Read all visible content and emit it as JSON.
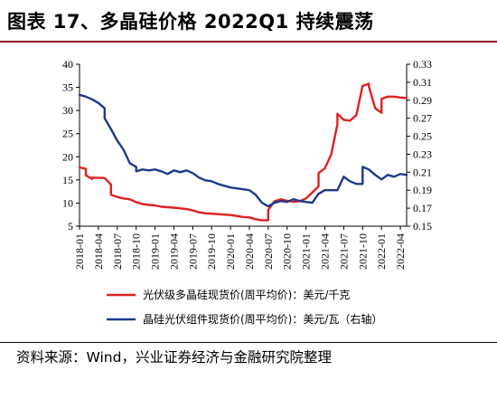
{
  "title": "图表 17、多晶硅价格 2022Q1 持续震荡",
  "source": "资料来源：Wind，兴业证券经济与金融研究院整理",
  "chart_data": {
    "type": "line",
    "x_tick_labels": [
      "2018-01",
      "2018-04",
      "2018-07",
      "2018-10",
      "2019-01",
      "2019-04",
      "2019-07",
      "2019-10",
      "2020-01",
      "2020-04",
      "2020-07",
      "2020-10",
      "2021-01",
      "2021-04",
      "2021-07",
      "2021-10",
      "2022-01",
      "2022-04"
    ],
    "y_left": {
      "min": 5,
      "max": 40,
      "ticks": [
        "5",
        "10",
        "15",
        "20",
        "25",
        "30",
        "35",
        "40"
      ]
    },
    "y_right": {
      "min": 0.15,
      "max": 0.33,
      "ticks": [
        "0.15",
        "0.17",
        "0.19",
        "0.21",
        "0.23",
        "0.25",
        "0.27",
        "0.29",
        "0.31",
        "0.33"
      ]
    },
    "grid": false,
    "legend_position": "bottom",
    "series": [
      {
        "name": "光伏级多晶硅现货价(周平均价)：美元/千克",
        "axis": "left",
        "color": "#e02020",
        "points": [
          [
            "2018-01",
            17.7
          ],
          [
            "2018-02",
            17.4
          ],
          [
            "2018-02",
            16.0
          ],
          [
            "2018-03",
            15.2
          ],
          [
            "2018-03",
            15.5
          ],
          [
            "2018-05",
            15.4
          ],
          [
            "2018-06",
            14.0
          ],
          [
            "2018-06",
            11.8
          ],
          [
            "2018-07",
            11.3
          ],
          [
            "2018-08",
            11.0
          ],
          [
            "2018-09",
            10.8
          ],
          [
            "2018-10",
            10.2
          ],
          [
            "2018-11",
            9.8
          ],
          [
            "2018-12",
            9.6
          ],
          [
            "2019-01",
            9.5
          ],
          [
            "2019-02",
            9.2
          ],
          [
            "2019-04",
            9.0
          ],
          [
            "2019-06",
            8.7
          ],
          [
            "2019-07",
            8.4
          ],
          [
            "2019-08",
            8.0
          ],
          [
            "2019-09",
            7.8
          ],
          [
            "2019-10",
            7.7
          ],
          [
            "2019-11",
            7.6
          ],
          [
            "2019-12",
            7.5
          ],
          [
            "2020-01",
            7.4
          ],
          [
            "2020-02",
            7.2
          ],
          [
            "2020-03",
            7.0
          ],
          [
            "2020-04",
            6.9
          ],
          [
            "2020-05",
            6.5
          ],
          [
            "2020-06",
            6.3
          ],
          [
            "2020-07",
            6.3
          ],
          [
            "2020-07",
            8.5
          ],
          [
            "2020-08",
            10.4
          ],
          [
            "2020-09",
            10.8
          ],
          [
            "2020-10",
            10.5
          ],
          [
            "2020-11",
            10.3
          ],
          [
            "2020-12",
            10.4
          ],
          [
            "2021-01",
            11.0
          ],
          [
            "2021-02",
            12.3
          ],
          [
            "2021-03",
            13.6
          ],
          [
            "2021-03",
            16.5
          ],
          [
            "2021-04",
            17.5
          ],
          [
            "2021-05",
            20.5
          ],
          [
            "2021-06",
            27.0
          ],
          [
            "2021-06",
            29.3
          ],
          [
            "2021-07",
            28.0
          ],
          [
            "2021-08",
            27.8
          ],
          [
            "2021-09",
            29.0
          ],
          [
            "2021-10",
            35.3
          ],
          [
            "2021-11",
            35.8
          ],
          [
            "2021-11",
            35.2
          ],
          [
            "2021-12",
            30.5
          ],
          [
            "2022-01",
            29.5
          ],
          [
            "2022-01",
            32.5
          ],
          [
            "2022-02",
            33.0
          ],
          [
            "2022-03",
            33.0
          ],
          [
            "2022-04",
            32.8
          ],
          [
            "2022-05",
            32.7
          ]
        ]
      },
      {
        "name": "晶硅光伏组件现货价(周平均价)：美元/瓦（右轴）",
        "axis": "right",
        "color": "#1c3a8a",
        "points": [
          [
            "2018-01",
            0.296
          ],
          [
            "2018-02",
            0.294
          ],
          [
            "2018-03",
            0.291
          ],
          [
            "2018-04",
            0.287
          ],
          [
            "2018-05",
            0.281
          ],
          [
            "2018-05",
            0.27
          ],
          [
            "2018-06",
            0.258
          ],
          [
            "2018-07",
            0.245
          ],
          [
            "2018-08",
            0.235
          ],
          [
            "2018-09",
            0.22
          ],
          [
            "2018-10",
            0.216
          ],
          [
            "2018-10",
            0.211
          ],
          [
            "2018-11",
            0.213
          ],
          [
            "2018-12",
            0.212
          ],
          [
            "2019-01",
            0.213
          ],
          [
            "2019-02",
            0.211
          ],
          [
            "2019-03",
            0.208
          ],
          [
            "2019-04",
            0.212
          ],
          [
            "2019-05",
            0.21
          ],
          [
            "2019-06",
            0.212
          ],
          [
            "2019-07",
            0.209
          ],
          [
            "2019-08",
            0.204
          ],
          [
            "2019-09",
            0.201
          ],
          [
            "2019-10",
            0.2
          ],
          [
            "2019-11",
            0.197
          ],
          [
            "2019-12",
            0.195
          ],
          [
            "2020-01",
            0.193
          ],
          [
            "2020-02",
            0.192
          ],
          [
            "2020-03",
            0.191
          ],
          [
            "2020-04",
            0.19
          ],
          [
            "2020-05",
            0.185
          ],
          [
            "2020-06",
            0.176
          ],
          [
            "2020-07",
            0.172
          ],
          [
            "2020-08",
            0.176
          ],
          [
            "2020-09",
            0.178
          ],
          [
            "2020-10",
            0.177
          ],
          [
            "2020-11",
            0.18
          ],
          [
            "2020-12",
            0.178
          ],
          [
            "2021-01",
            0.177
          ],
          [
            "2021-02",
            0.176
          ],
          [
            "2021-03",
            0.186
          ],
          [
            "2021-04",
            0.19
          ],
          [
            "2021-05",
            0.19
          ],
          [
            "2021-06",
            0.19
          ],
          [
            "2021-07",
            0.205
          ],
          [
            "2021-08",
            0.2
          ],
          [
            "2021-09",
            0.197
          ],
          [
            "2021-10",
            0.197
          ],
          [
            "2021-10",
            0.216
          ],
          [
            "2021-11",
            0.213
          ],
          [
            "2021-12",
            0.207
          ],
          [
            "2022-01",
            0.202
          ],
          [
            "2022-02",
            0.207
          ],
          [
            "2022-03",
            0.205
          ],
          [
            "2022-04",
            0.208
          ],
          [
            "2022-05",
            0.207
          ]
        ]
      }
    ]
  }
}
